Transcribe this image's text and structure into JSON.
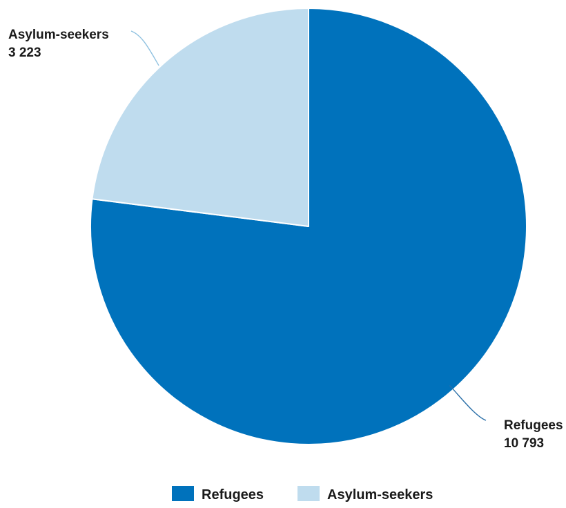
{
  "chart_data": {
    "type": "pie",
    "categories": [
      "Refugees",
      "Asylum-seekers"
    ],
    "values": [
      10793,
      3223
    ],
    "value_labels": [
      "10 793",
      "3 223"
    ],
    "colors": [
      "#0072bc",
      "#bfdcee"
    ],
    "title": "",
    "legend": {
      "placement": "bottom",
      "entries": [
        "Refugees",
        "Asylum-seekers"
      ]
    }
  }
}
